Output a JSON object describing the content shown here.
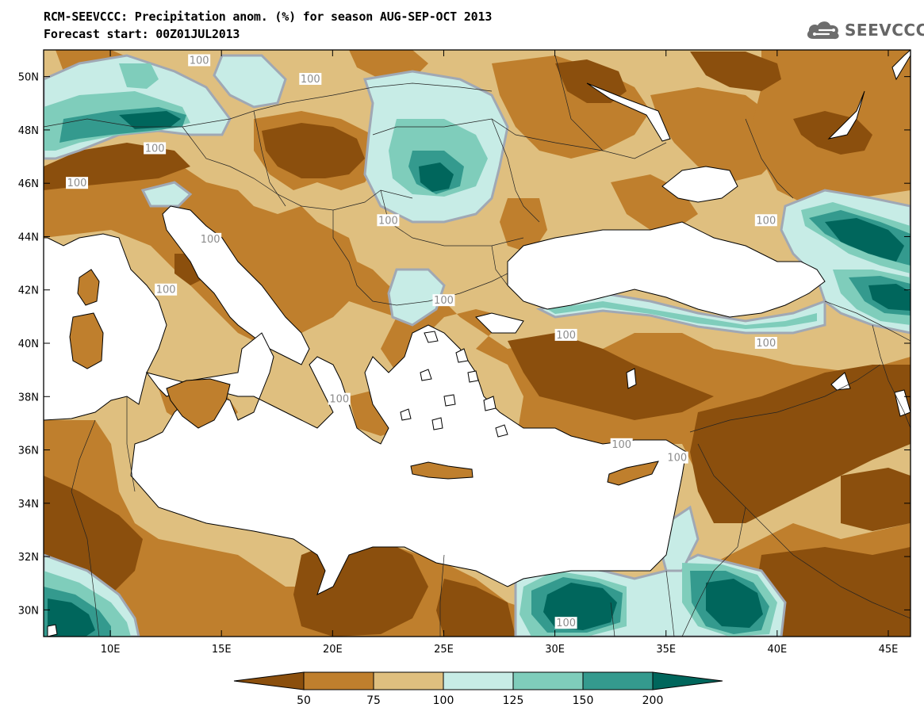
{
  "title_line1": "RCM-SEEVCCC: Precipitation anom. (%) for season AUG-SEP-OCT 2013",
  "title_line2": "Forecast start: 00Z01JUL2013",
  "logo_text": "SEEVCCC",
  "logo_icon": "cloud-icon",
  "map": {
    "lon_range": [
      7,
      46
    ],
    "lat_range": [
      29,
      51
    ],
    "lon_ticks": [
      10,
      15,
      20,
      25,
      30,
      35,
      40,
      45
    ],
    "lon_tick_labels": [
      "10E",
      "15E",
      "20E",
      "25E",
      "30E",
      "35E",
      "40E",
      "45E"
    ],
    "lat_ticks": [
      30,
      32,
      34,
      36,
      38,
      40,
      42,
      44,
      46,
      48,
      50
    ],
    "lat_tick_labels": [
      "30N",
      "32N",
      "34N",
      "36N",
      "38N",
      "40N",
      "42N",
      "44N",
      "46N",
      "48N",
      "50N"
    ],
    "contour_label": "100",
    "contour_label_points": [
      [
        14.0,
        50.6
      ],
      [
        19.0,
        49.9
      ],
      [
        12.0,
        47.3
      ],
      [
        8.5,
        46.0
      ],
      [
        22.5,
        44.6
      ],
      [
        25.0,
        41.6
      ],
      [
        30.5,
        40.3
      ],
      [
        39.5,
        40.0
      ],
      [
        39.5,
        44.6
      ],
      [
        14.5,
        43.9
      ],
      [
        12.5,
        42.0
      ],
      [
        20.3,
        37.9
      ],
      [
        33.0,
        36.2
      ],
      [
        30.5,
        29.5
      ],
      [
        37.8,
        29.0
      ],
      [
        35.5,
        35.7
      ]
    ]
  },
  "colorbar": {
    "ticks": [
      "50",
      "75",
      "100",
      "125",
      "150",
      "200"
    ],
    "colors": [
      "#8b4f0d",
      "#bf7f2d",
      "#dfbf7f",
      "#c7ece6",
      "#7fcdbb",
      "#349a8e",
      "#00665c"
    ]
  },
  "colors": {
    "land_default": "#dfbf7f",
    "sea": "#ffffff",
    "below_50": "#8b4f0d",
    "50_75": "#bf7f2d",
    "75_100": "#dfbf7f",
    "100_125": "#c7ece6",
    "125_150": "#7fcdbb",
    "150_200": "#349a8e",
    "above_200": "#00665c",
    "contour_100": "#a0a8b4"
  }
}
